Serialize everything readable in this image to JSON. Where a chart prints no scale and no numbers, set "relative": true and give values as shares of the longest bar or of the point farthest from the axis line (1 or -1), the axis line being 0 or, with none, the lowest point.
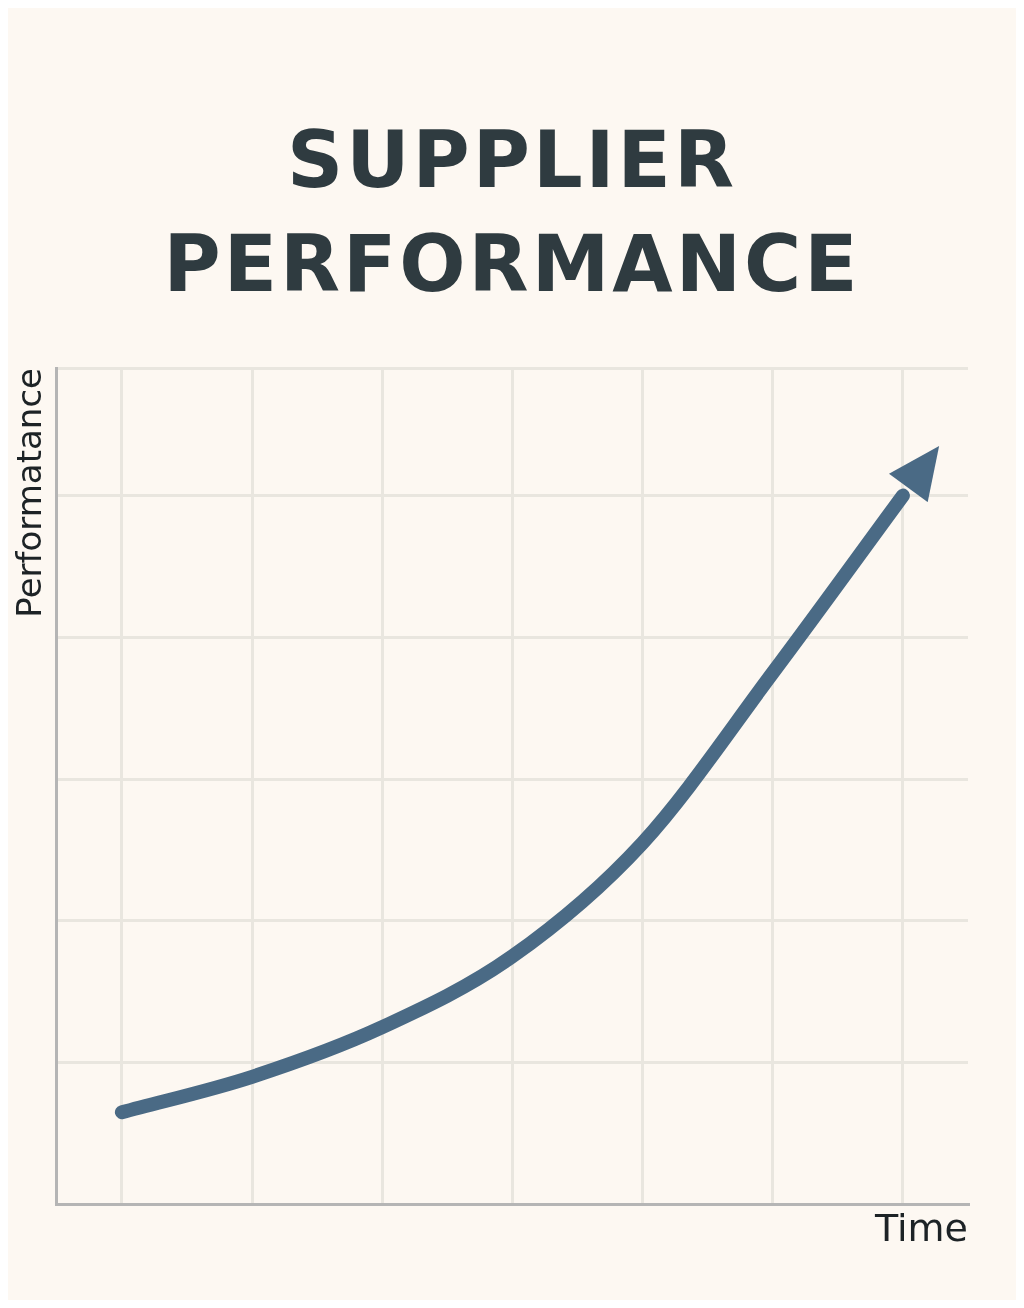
{
  "chart_data": {
    "type": "line",
    "title": "SUPPLIER PERFORMANCE",
    "xlabel": "Time",
    "ylabel": "Performatance",
    "relative": true,
    "grid": true,
    "legend": false,
    "marker": "none",
    "line_style": "solid",
    "categories": [
      null,
      null,
      null,
      null,
      null,
      null,
      null
    ],
    "series": [
      {
        "color": "#4a6a85",
        "values": [
          0.13,
          0.18,
          0.25,
          0.35,
          0.51,
          0.75,
          1.0
        ]
      }
    ]
  }
}
